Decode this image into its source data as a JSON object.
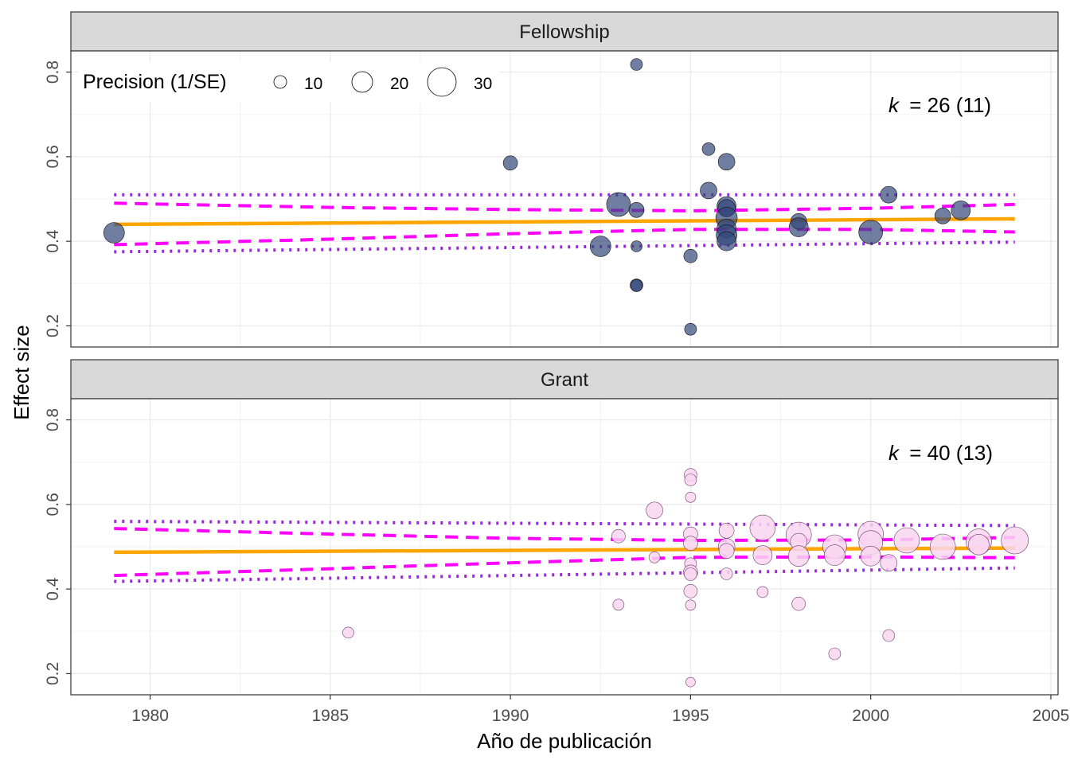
{
  "chart_data": {
    "type": "scatter",
    "xlabel": "Año de publicación",
    "ylabel": "Effect size",
    "xlim": [
      1977.8,
      2005.2
    ],
    "ylim": [
      0.15,
      0.85
    ],
    "x_ticks": [
      1980,
      1985,
      1990,
      1995,
      2000,
      2005
    ],
    "y_ticks": [
      0.2,
      0.4,
      0.6,
      0.8
    ],
    "grid": true,
    "legend": {
      "title": "Precision (1/SE)",
      "placement": "top-left",
      "entries": [
        {
          "label": "10",
          "value": 10
        },
        {
          "label": "20",
          "value": 20
        },
        {
          "label": "30",
          "value": 30
        }
      ]
    },
    "line_colors": {
      "fit": "#FFA500",
      "ci": "#FF00FF",
      "pi": "#A020F0"
    },
    "panels": [
      {
        "name": "Fellowship",
        "k_label": "k",
        "k_text": "= 26 (11)",
        "point_color": "#33477A",
        "fit": {
          "x": [
            1979,
            2004
          ],
          "y": [
            0.44,
            0.453
          ]
        },
        "ci_upper": {
          "x": [
            1979,
            1985,
            1990,
            1995,
            2000,
            2004
          ],
          "y": [
            0.49,
            0.48,
            0.475,
            0.472,
            0.478,
            0.487
          ]
        },
        "ci_lower": {
          "x": [
            1979,
            1985,
            1990,
            1995,
            2000,
            2004
          ],
          "y": [
            0.392,
            0.405,
            0.418,
            0.428,
            0.428,
            0.422
          ]
        },
        "pi_upper": {
          "x": [
            1979,
            2004
          ],
          "y": [
            0.51,
            0.51
          ]
        },
        "pi_lower": {
          "x": [
            1979,
            2004
          ],
          "y": [
            0.375,
            0.398
          ]
        },
        "points": [
          {
            "x": 1979,
            "y": 0.42,
            "p": 20
          },
          {
            "x": 1990,
            "y": 0.585,
            "p": 12
          },
          {
            "x": 1992.5,
            "y": 0.388,
            "p": 20
          },
          {
            "x": 1993,
            "y": 0.487,
            "p": 24
          },
          {
            "x": 1993.5,
            "y": 0.818,
            "p": 9
          },
          {
            "x": 1993.5,
            "y": 0.474,
            "p": 13
          },
          {
            "x": 1993.5,
            "y": 0.388,
            "p": 8
          },
          {
            "x": 1993.5,
            "y": 0.296,
            "p": 10
          },
          {
            "x": 1993.5,
            "y": 0.295,
            "p": 9
          },
          {
            "x": 1995,
            "y": 0.365,
            "p": 11
          },
          {
            "x": 1995,
            "y": 0.192,
            "p": 9
          },
          {
            "x": 1995.5,
            "y": 0.618,
            "p": 10
          },
          {
            "x": 1995.5,
            "y": 0.52,
            "p": 15
          },
          {
            "x": 1996,
            "y": 0.588,
            "p": 15
          },
          {
            "x": 1996,
            "y": 0.483,
            "p": 18
          },
          {
            "x": 1996,
            "y": 0.478,
            "p": 16
          },
          {
            "x": 1996,
            "y": 0.455,
            "p": 21
          },
          {
            "x": 1996,
            "y": 0.43,
            "p": 18
          },
          {
            "x": 1996,
            "y": 0.415,
            "p": 20
          },
          {
            "x": 1996,
            "y": 0.4,
            "p": 18
          },
          {
            "x": 1998,
            "y": 0.447,
            "p": 14
          },
          {
            "x": 1998,
            "y": 0.433,
            "p": 18
          },
          {
            "x": 2000,
            "y": 0.422,
            "p": 24
          },
          {
            "x": 2000.5,
            "y": 0.51,
            "p": 15
          },
          {
            "x": 2002,
            "y": 0.46,
            "p": 14
          },
          {
            "x": 2002.5,
            "y": 0.473,
            "p": 18
          }
        ]
      },
      {
        "name": "Grant",
        "k_label": "k",
        "k_text": "= 40 (13)",
        "point_color": "#F9D6F0",
        "fit": {
          "x": [
            1979,
            2004
          ],
          "y": [
            0.487,
            0.497
          ]
        },
        "ci_upper": {
          "x": [
            1979,
            1985,
            1990,
            1995,
            2000,
            2004
          ],
          "y": [
            0.543,
            0.53,
            0.52,
            0.515,
            0.516,
            0.522
          ]
        },
        "ci_lower": {
          "x": [
            1979,
            1985,
            1990,
            1995,
            2000,
            2004
          ],
          "y": [
            0.432,
            0.448,
            0.462,
            0.475,
            0.476,
            0.474
          ]
        },
        "pi_upper": {
          "x": [
            1979,
            2004
          ],
          "y": [
            0.56,
            0.55
          ]
        },
        "pi_lower": {
          "x": [
            1979,
            2004
          ],
          "y": [
            0.418,
            0.45
          ]
        },
        "points": [
          {
            "x": 1985.5,
            "y": 0.297,
            "p": 8
          },
          {
            "x": 1993,
            "y": 0.525,
            "p": 11
          },
          {
            "x": 1993,
            "y": 0.363,
            "p": 8
          },
          {
            "x": 1994,
            "y": 0.586,
            "p": 15
          },
          {
            "x": 1994,
            "y": 0.475,
            "p": 8
          },
          {
            "x": 1995,
            "y": 0.67,
            "p": 10
          },
          {
            "x": 1995,
            "y": 0.658,
            "p": 9
          },
          {
            "x": 1995,
            "y": 0.617,
            "p": 7
          },
          {
            "x": 1995,
            "y": 0.53,
            "p": 12
          },
          {
            "x": 1995,
            "y": 0.508,
            "p": 12
          },
          {
            "x": 1995,
            "y": 0.46,
            "p": 9
          },
          {
            "x": 1995,
            "y": 0.44,
            "p": 12
          },
          {
            "x": 1995,
            "y": 0.435,
            "p": 10
          },
          {
            "x": 1995,
            "y": 0.395,
            "p": 11
          },
          {
            "x": 1995,
            "y": 0.362,
            "p": 7
          },
          {
            "x": 1995,
            "y": 0.18,
            "p": 6
          },
          {
            "x": 1996,
            "y": 0.538,
            "p": 13
          },
          {
            "x": 1996,
            "y": 0.5,
            "p": 15
          },
          {
            "x": 1996,
            "y": 0.49,
            "p": 13
          },
          {
            "x": 1996,
            "y": 0.436,
            "p": 9
          },
          {
            "x": 1997,
            "y": 0.545,
            "p": 26
          },
          {
            "x": 1997,
            "y": 0.48,
            "p": 18
          },
          {
            "x": 1997,
            "y": 0.393,
            "p": 8
          },
          {
            "x": 1998,
            "y": 0.528,
            "p": 26
          },
          {
            "x": 1998,
            "y": 0.512,
            "p": 15
          },
          {
            "x": 1998,
            "y": 0.478,
            "p": 20
          },
          {
            "x": 1998,
            "y": 0.365,
            "p": 11
          },
          {
            "x": 1999,
            "y": 0.5,
            "p": 24
          },
          {
            "x": 1999,
            "y": 0.48,
            "p": 20
          },
          {
            "x": 1999,
            "y": 0.247,
            "p": 9
          },
          {
            "x": 2000,
            "y": 0.53,
            "p": 26
          },
          {
            "x": 2000,
            "y": 0.51,
            "p": 24
          },
          {
            "x": 2000,
            "y": 0.478,
            "p": 19
          },
          {
            "x": 2000.5,
            "y": 0.462,
            "p": 15
          },
          {
            "x": 2000.5,
            "y": 0.29,
            "p": 9
          },
          {
            "x": 2001,
            "y": 0.515,
            "p": 26
          },
          {
            "x": 2002,
            "y": 0.5,
            "p": 26
          },
          {
            "x": 2003,
            "y": 0.512,
            "p": 26
          },
          {
            "x": 2003,
            "y": 0.505,
            "p": 20
          },
          {
            "x": 2004,
            "y": 0.515,
            "p": 28
          }
        ]
      }
    ]
  }
}
